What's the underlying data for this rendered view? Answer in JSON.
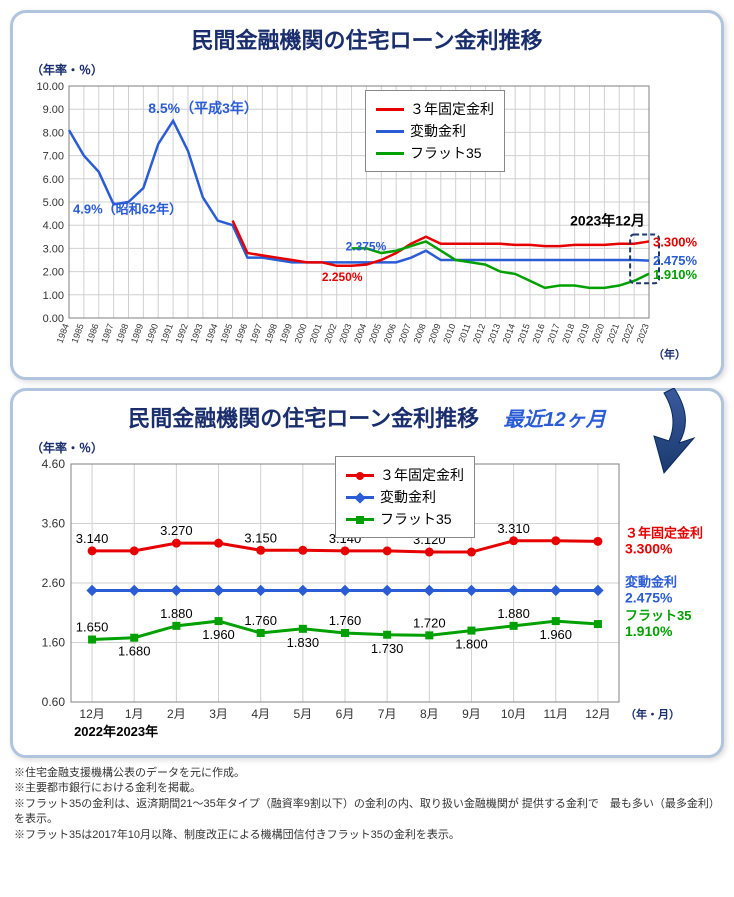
{
  "top_chart": {
    "title": "民間金融機関の住宅ローン金利推移",
    "axis_note": "（年率・％）",
    "x_axis_label": "（年）",
    "type": "line",
    "legend_items": [
      {
        "label": "３年固定金利",
        "color": "#e60000"
      },
      {
        "label": "変動金利",
        "color": "#2a5cd6"
      },
      {
        "label": "フラット35",
        "color": "#00a000"
      }
    ],
    "ylim": [
      0,
      10
    ],
    "ytick_step": 1,
    "xlabels": [
      "1984",
      "1985",
      "1986",
      "1987",
      "1988",
      "1989",
      "1990",
      "1991",
      "1992",
      "1993",
      "1994",
      "1995",
      "1996",
      "1997",
      "1998",
      "1999",
      "2000",
      "2001",
      "2002",
      "2003",
      "2004",
      "2005",
      "2006",
      "2007",
      "2008",
      "2009",
      "2010",
      "2011",
      "2012",
      "2013",
      "2014",
      "2015",
      "2016",
      "2017",
      "2018",
      "2019",
      "2020",
      "2021",
      "2022",
      "2023"
    ],
    "annotations": {
      "peak_1991": "8.5%（平成3年）",
      "start_1987": "4.9%（昭和62年）",
      "red_low": "2.250%",
      "blue_mid": "2.375%",
      "end_header": "2023年12月",
      "end_red": "3.300%",
      "end_blue": "2.475%",
      "end_green": "1.910%"
    },
    "grid_color": "#d0d0d0",
    "axis_color": "#808080",
    "blue_series": [
      8.1,
      7.0,
      6.3,
      4.9,
      5.0,
      5.6,
      7.5,
      8.5,
      7.2,
      5.2,
      4.2,
      4.0,
      2.6,
      2.6,
      2.5,
      2.4,
      2.4,
      2.4,
      2.4,
      2.4,
      2.4,
      2.4,
      2.4,
      2.6,
      2.9,
      2.5,
      2.5,
      2.5,
      2.5,
      2.5,
      2.5,
      2.5,
      2.5,
      2.5,
      2.5,
      2.5,
      2.5,
      2.5,
      2.5,
      2.475
    ],
    "red_series": [
      null,
      null,
      null,
      null,
      null,
      null,
      null,
      null,
      null,
      null,
      null,
      4.2,
      2.8,
      2.7,
      2.6,
      2.5,
      2.4,
      2.4,
      2.25,
      2.25,
      2.3,
      2.5,
      2.8,
      3.2,
      3.5,
      3.2,
      3.2,
      3.2,
      3.2,
      3.2,
      3.15,
      3.15,
      3.1,
      3.1,
      3.15,
      3.15,
      3.15,
      3.2,
      3.2,
      3.3
    ],
    "green_series": [
      null,
      null,
      null,
      null,
      null,
      null,
      null,
      null,
      null,
      null,
      null,
      null,
      null,
      null,
      null,
      null,
      null,
      null,
      null,
      3.0,
      3.0,
      2.8,
      2.9,
      3.1,
      3.3,
      2.9,
      2.5,
      2.4,
      2.3,
      2.0,
      1.9,
      1.6,
      1.3,
      1.4,
      1.4,
      1.3,
      1.3,
      1.4,
      1.6,
      1.91
    ]
  },
  "bottom_chart": {
    "title": "民間金融機関の住宅ローン金利推移",
    "subtitle": "最近12ヶ月",
    "axis_note": "（年率・％）",
    "x_axis_label": "（年・月）",
    "year_labels": {
      "left": "2022年",
      "right": "2023年"
    },
    "type": "line",
    "legend_items": [
      {
        "label": "３年固定金利",
        "color": "#e60000",
        "marker": "circle"
      },
      {
        "label": "変動金利",
        "color": "#2a5cd6",
        "marker": "diamond"
      },
      {
        "label": "フラット35",
        "color": "#00a000",
        "marker": "square"
      }
    ],
    "ylim": [
      0.6,
      4.6
    ],
    "ytick_step": 1.0,
    "xlabels": [
      "12月",
      "1月",
      "2月",
      "3月",
      "4月",
      "5月",
      "6月",
      "7月",
      "8月",
      "9月",
      "10月",
      "11月",
      "12月"
    ],
    "red_values": [
      3.14,
      3.14,
      3.27,
      3.27,
      3.15,
      3.15,
      3.14,
      3.14,
      3.12,
      3.12,
      3.31,
      3.31,
      3.3
    ],
    "blue_values": [
      2.475,
      2.475,
      2.475,
      2.475,
      2.475,
      2.475,
      2.475,
      2.475,
      2.475,
      2.475,
      2.475,
      2.475,
      2.475
    ],
    "green_values": [
      1.65,
      1.68,
      1.88,
      1.96,
      1.76,
      1.83,
      1.76,
      1.73,
      1.72,
      1.8,
      1.88,
      1.96,
      1.91
    ],
    "red_labels": [
      "3.140",
      null,
      "3.270",
      null,
      "3.150",
      null,
      "3.140",
      null,
      "3.120",
      null,
      "3.310",
      null,
      null
    ],
    "red_labels_below": [
      null,
      null,
      null,
      null,
      null,
      null,
      null,
      null,
      null,
      null,
      null,
      null,
      null
    ],
    "green_labels_above": [
      "1.650",
      null,
      "1.880",
      null,
      "1.760",
      null,
      "1.760",
      null,
      "1.720",
      null,
      "1.880",
      null,
      null
    ],
    "green_labels_below": [
      null,
      "1.680",
      null,
      "1.960",
      null,
      "1.830",
      null,
      "1.730",
      null,
      "1.800",
      null,
      "1.960",
      null
    ],
    "end_labels": {
      "red_name": "３年固定金利",
      "red_val": "3.300%",
      "blue_name": "変動金利",
      "blue_val": "2.475%",
      "green_name": "フラット35",
      "green_val": "1.910%"
    },
    "grid_color": "#d0d0d0",
    "plot_bg": "#ffffff"
  },
  "notes": [
    "※住宅金融支援機構公表のデータを元に作成。",
    "※主要都市銀行における金利を掲載。",
    "※フラット35の金利は、返済期間21～35年タイプ（融資率9割以下）の金利の内、取り扱い金融機関が 提供する金利で　最も多い（最多金利）を表示。",
    "※フラット35は2017年10月以降、制度改正による機構団信付きフラット35の金利を表示。"
  ],
  "colors": {
    "panel_border": "#b0c4de",
    "title_color": "#1a2e6e",
    "subtitle_color": "#2a5cd6",
    "arrow_color": "#1a3a6e"
  }
}
